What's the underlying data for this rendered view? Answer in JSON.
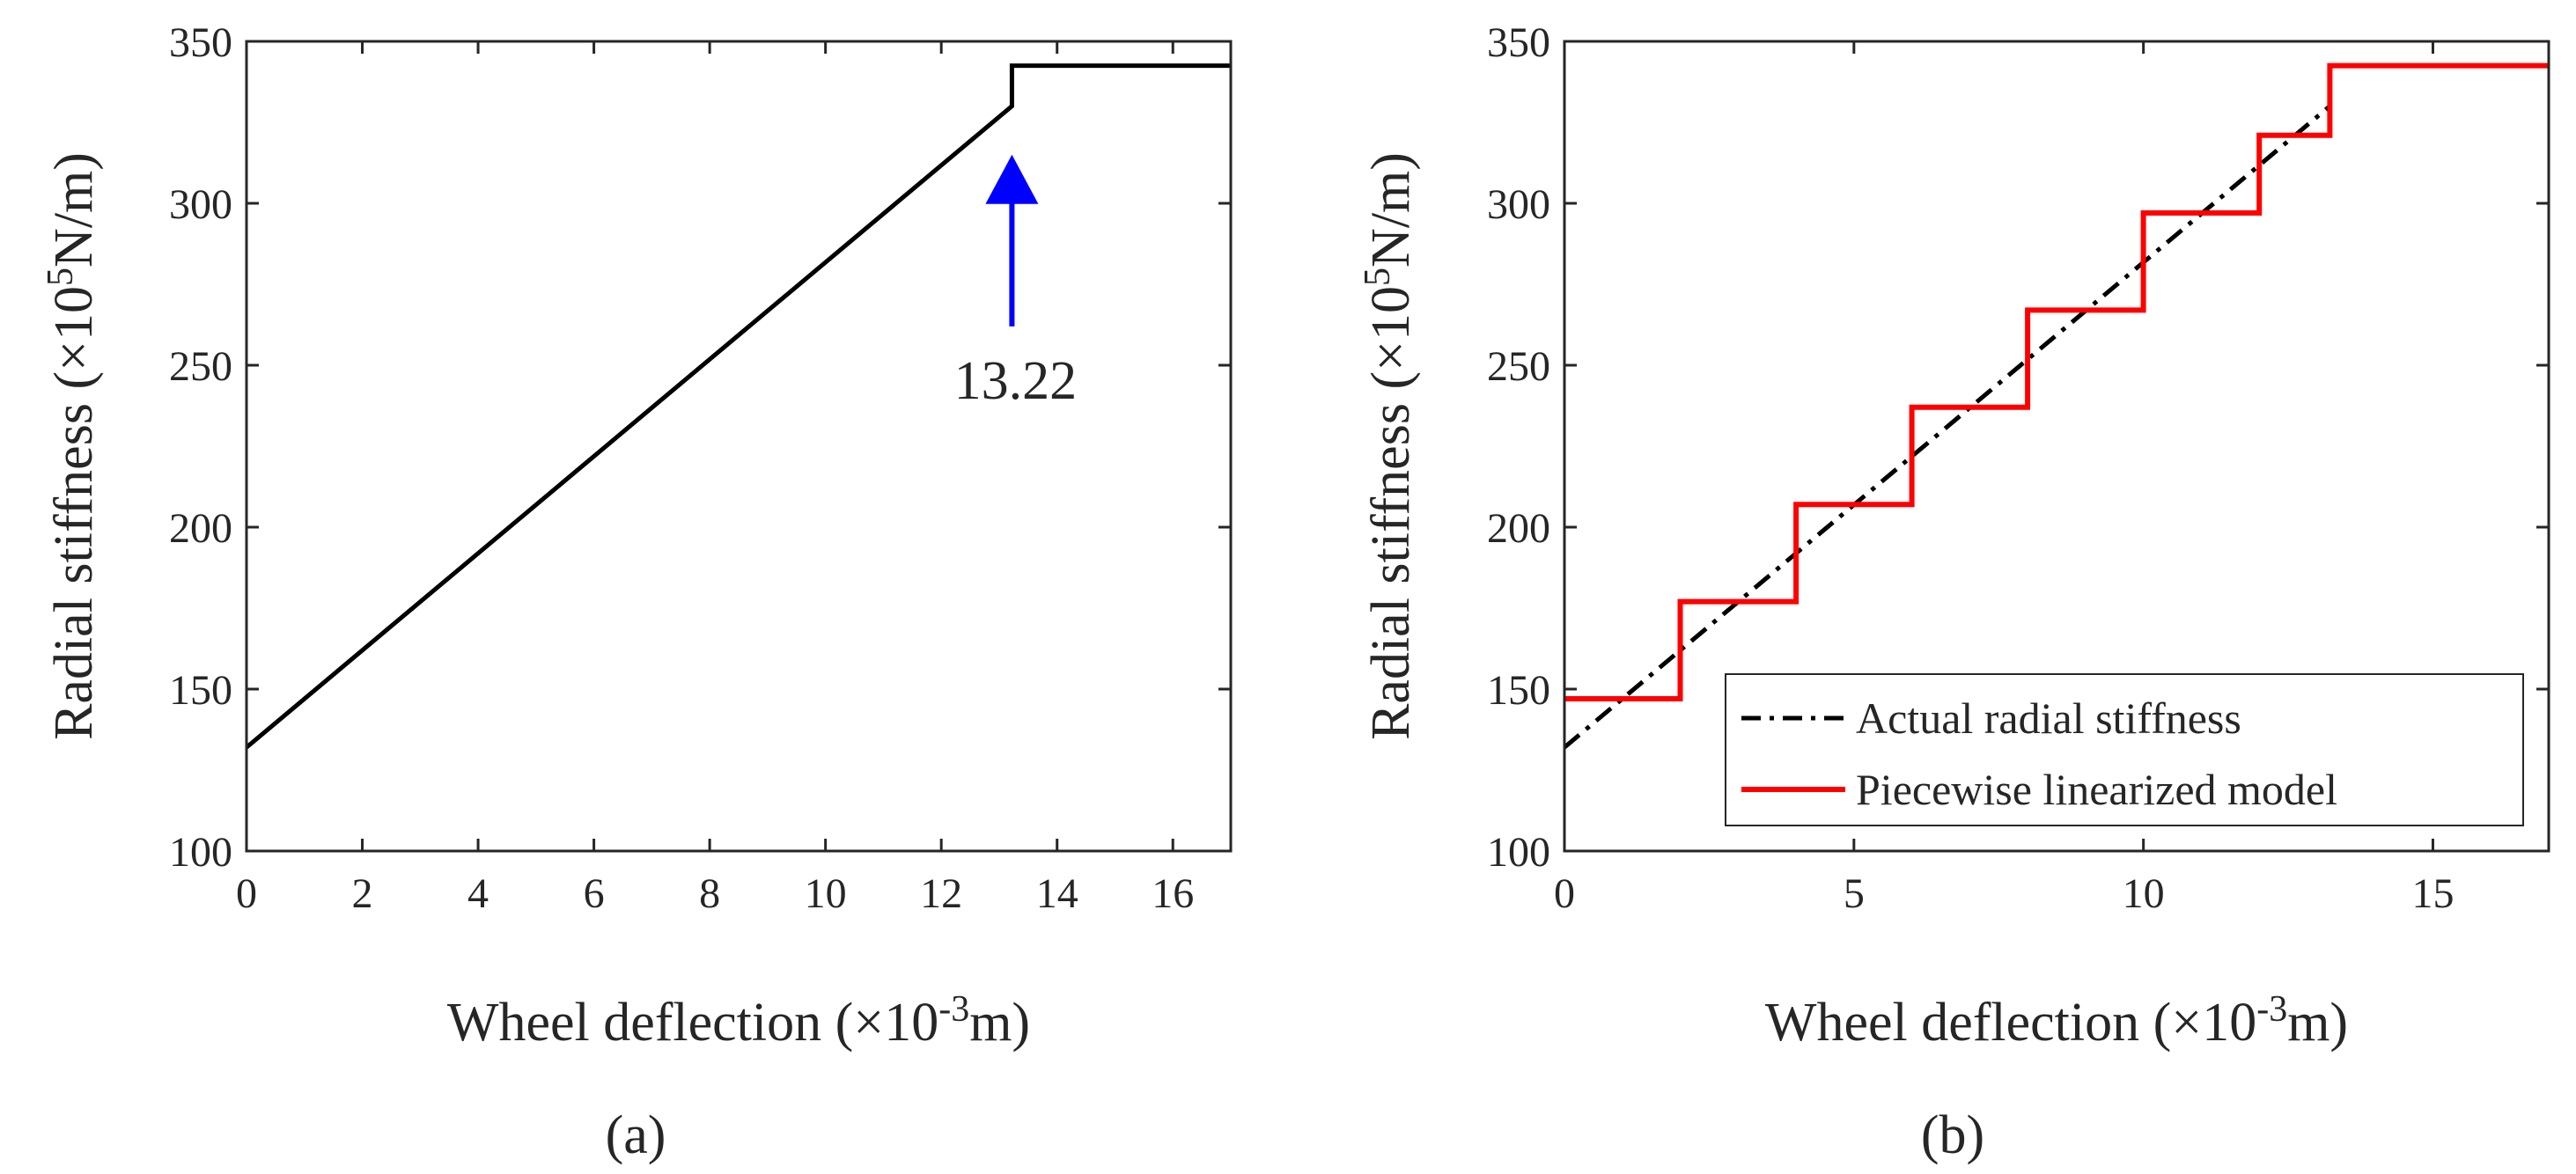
{
  "chart_data": [
    {
      "id": "a",
      "type": "line",
      "panel_label": "(a)",
      "xlabel_main": "Wheel deflection (×10",
      "xlabel_exp": "-3",
      "xlabel_unit": "m)",
      "ylabel_main": "Radial stiffness (×10",
      "ylabel_exp": "5",
      "ylabel_unit": "N/m)",
      "xlim": [
        0,
        17
      ],
      "ylim": [
        100,
        350
      ],
      "xticks": [
        0,
        2,
        4,
        6,
        8,
        10,
        12,
        14,
        16
      ],
      "yticks": [
        100,
        150,
        200,
        250,
        300,
        350
      ],
      "grid": false,
      "series": [
        {
          "name": "Radial stiffness",
          "color": "#000000",
          "style": "solid",
          "x": [
            0,
            13.22,
            13.22,
            17
          ],
          "y": [
            132,
            330,
            342.5,
            342.5
          ]
        }
      ],
      "annotation": {
        "text": "13.22",
        "color": "#0000ff",
        "x": 13.22,
        "y_tail": 262,
        "y_head": 315
      }
    },
    {
      "id": "b",
      "type": "line",
      "panel_label": "(b)",
      "xlabel_main": "Wheel deflection (×10",
      "xlabel_exp": "-3",
      "xlabel_unit": "m)",
      "ylabel_main": "Radial stiffness (×10",
      "ylabel_exp": "5",
      "ylabel_unit": "N/m)",
      "xlim": [
        0,
        17
      ],
      "ylim": [
        100,
        350
      ],
      "xticks": [
        0,
        5,
        10,
        15
      ],
      "yticks": [
        100,
        150,
        200,
        250,
        300,
        350
      ],
      "grid": false,
      "legend_position": "bottom-right",
      "series": [
        {
          "name": "Actual radial stiffness",
          "color": "#000000",
          "style": "dashdot",
          "x": [
            0,
            13.22
          ],
          "y": [
            132,
            330
          ]
        },
        {
          "name": "Piecewise linearized model",
          "color": "#ff0000",
          "style": "solid",
          "x": [
            0,
            2,
            2,
            4,
            4,
            6,
            6,
            8,
            8,
            10,
            10,
            12,
            12,
            13.22,
            13.22,
            17
          ],
          "y": [
            147,
            147,
            177,
            177,
            207,
            207,
            237,
            237,
            267,
            267,
            297,
            297,
            321,
            321,
            342.5,
            342.5
          ]
        }
      ]
    }
  ]
}
